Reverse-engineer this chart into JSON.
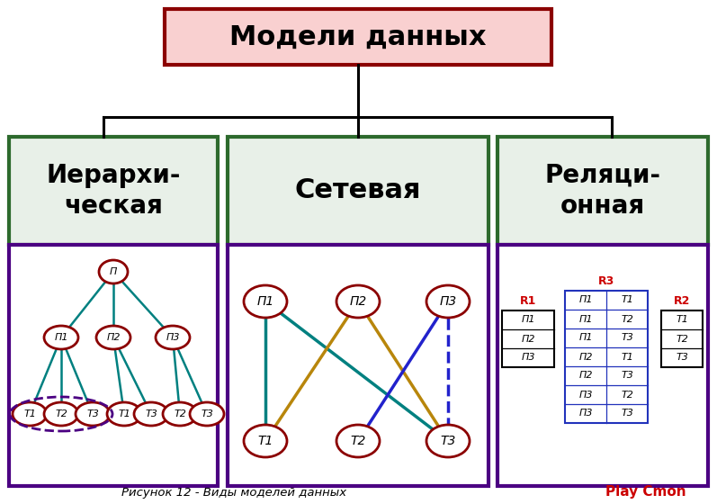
{
  "title": "Модели данных",
  "title_bg": "#f9d0d0",
  "title_border": "#8b0000",
  "col1_label": "Иерархи-\nческая",
  "col2_label": "Сетевая",
  "col3_label": "Реляци-\nонная",
  "col_label_bg": "#e8f0e8",
  "col_label_border": "#2d6a2d",
  "col_content_border": "#4b0082",
  "background": "#ffffff",
  "caption": "Рисунок 12 - Виды моделей данных",
  "caption_right": "Play Cmon",
  "caption_color": "#000000",
  "caption_right_color": "#cc0000",
  "node_fill": "#ffffff",
  "node_border": "#8b0000",
  "tree_line_color": "#008080",
  "net_line1_color": "#008080",
  "net_line2_color": "#b8860b",
  "net_line3_color": "#2222cc",
  "table_r1_border": "#000000",
  "table_r3_border": "#2233bb",
  "table_r2_border": "#000000",
  "r1_label_color": "#cc0000",
  "r2_label_color": "#cc0000",
  "r3_label_color": "#cc0000",
  "encircle_color": "#4b0082"
}
